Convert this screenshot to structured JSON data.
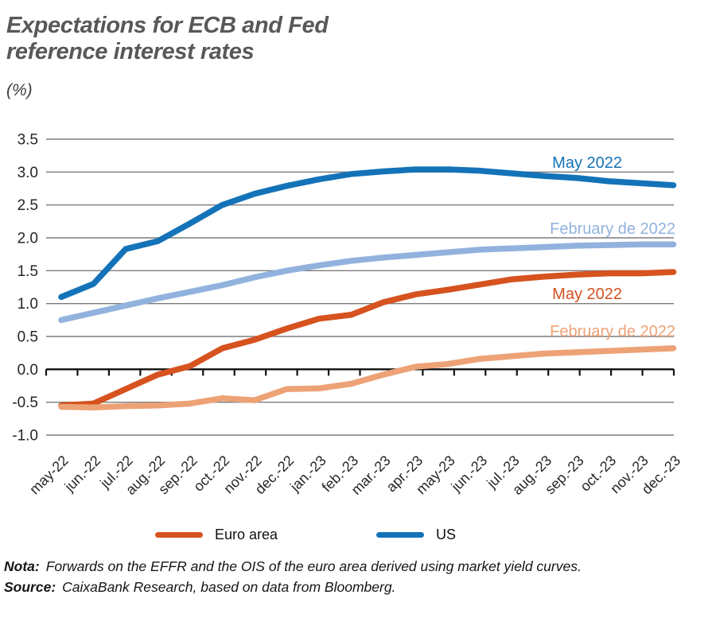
{
  "page": {
    "title_line1": "Expectations for ECB and Fed",
    "title_line2": "reference interest rates",
    "subtitle": "(%)"
  },
  "legend": {
    "items": [
      {
        "label": "Euro area",
        "color": "#d6521f"
      },
      {
        "label": "US",
        "color": "#1473b8"
      }
    ]
  },
  "footer": {
    "note_label": "Nota:",
    "note_text": "Forwards on the EFFR and the OIS of the euro area derived using market yield curves.",
    "source_label": "Source:",
    "source_text": "CaixaBank Research, based on data from Bloomberg."
  },
  "chart_data": {
    "type": "line",
    "title": "Expectations for ECB and Fed reference interest rates",
    "ylabel": "(%)",
    "xlabel": "",
    "grid": true,
    "ylim": [
      -1.0,
      3.5
    ],
    "ytick_step": 0.5,
    "yticks": [
      "3.5",
      "3.0",
      "2.5",
      "2.0",
      "1.5",
      "1.0",
      "0.5",
      "0.0",
      "-0.5",
      "-1.0"
    ],
    "categories": [
      "may-22",
      "jun.-22",
      "jul.-22",
      "aug.-22",
      "sep.-22",
      "oct.-22",
      "nov.-22",
      "dec.-22",
      "jan.-23",
      "feb.-23",
      "mar.-23",
      "apr.-23",
      "may-23",
      "jun.-23",
      "jul.-23",
      "aug.-23",
      "sep.-23",
      "oct.-23",
      "nov.-23",
      "dec.-23"
    ],
    "series": [
      {
        "name": "US - May 2022 expectations",
        "color": "#1473b8",
        "values": [
          1.1,
          1.3,
          1.83,
          1.95,
          2.22,
          2.5,
          2.67,
          2.79,
          2.89,
          2.97,
          3.01,
          3.04,
          3.04,
          3.02,
          2.98,
          2.94,
          2.91,
          2.86,
          2.83,
          2.8
        ]
      },
      {
        "name": "US - February 2022 expectations",
        "color": "#92b2de",
        "values": [
          0.75,
          0.86,
          0.97,
          1.08,
          1.18,
          1.28,
          1.4,
          1.5,
          1.58,
          1.65,
          1.7,
          1.74,
          1.78,
          1.82,
          1.84,
          1.86,
          1.88,
          1.89,
          1.9,
          1.9
        ]
      },
      {
        "name": "Euro area - May 2022 expectations",
        "color": "#d6521f",
        "values": [
          -0.55,
          -0.52,
          -0.3,
          -0.08,
          0.05,
          0.32,
          0.45,
          0.62,
          0.77,
          0.83,
          1.02,
          1.14,
          1.21,
          1.29,
          1.37,
          1.41,
          1.44,
          1.46,
          1.46,
          1.48
        ]
      },
      {
        "name": "Euro area - February 2022 expectations",
        "color": "#eda276",
        "values": [
          -0.57,
          -0.58,
          -0.56,
          -0.55,
          -0.52,
          -0.44,
          -0.47,
          -0.3,
          -0.29,
          -0.22,
          -0.08,
          0.04,
          0.08,
          0.16,
          0.2,
          0.24,
          0.26,
          0.28,
          0.3,
          0.32
        ]
      }
    ],
    "annotations": [
      {
        "text": "May 2022",
        "color": "#1473b8",
        "x": 782,
        "y": 61,
        "anchor": "end"
      },
      {
        "text": "February de 2022",
        "color": "#92b2de",
        "x": 849,
        "y": 144,
        "anchor": "end"
      },
      {
        "text": "May 2022",
        "color": "#d6521f",
        "x": 782,
        "y": 226,
        "anchor": "end"
      },
      {
        "text": "February de 2022",
        "color": "#eda276",
        "x": 849,
        "y": 273,
        "anchor": "end"
      }
    ],
    "legend_position": "bottom"
  }
}
